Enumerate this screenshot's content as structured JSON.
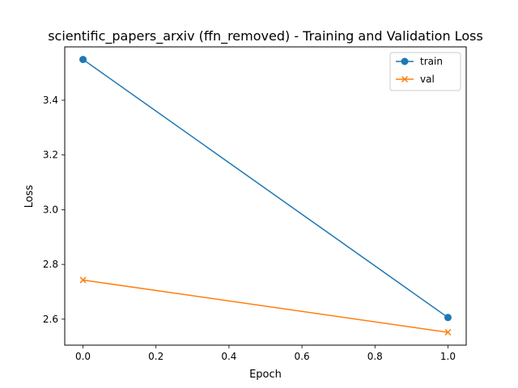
{
  "chart_data": {
    "type": "line",
    "title": "scientific_papers_arxiv (ffn_removed) - Training and Validation Loss",
    "xlabel": "Epoch",
    "ylabel": "Loss",
    "x": [
      0.0,
      1.0
    ],
    "xlim": [
      -0.05,
      1.05
    ],
    "ylim": [
      2.505,
      3.595
    ],
    "xticks": [
      0.0,
      0.2,
      0.4,
      0.6,
      0.8,
      1.0
    ],
    "xtick_labels": [
      "0.0",
      "0.2",
      "0.4",
      "0.6",
      "0.8",
      "1.0"
    ],
    "yticks": [
      2.6,
      2.8,
      3.0,
      3.2,
      3.4
    ],
    "ytick_labels": [
      "2.6",
      "2.8",
      "3.0",
      "3.2",
      "3.4"
    ],
    "grid": false,
    "legend_position": "upper right",
    "series": [
      {
        "name": "train",
        "values": [
          3.549,
          2.606
        ],
        "color": "#1f77b4",
        "marker": "circle"
      },
      {
        "name": "val",
        "values": [
          2.743,
          2.552
        ],
        "color": "#ff7f0e",
        "marker": "x"
      }
    ]
  }
}
